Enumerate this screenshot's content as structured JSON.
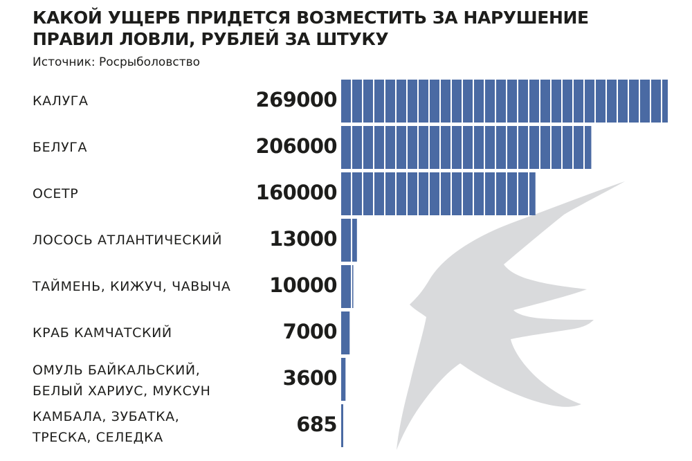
{
  "header": {
    "title": "КАКОЙ УЩЕРБ ПРИДЕТСЯ ВОЗМЕСТИТЬ ЗА НАРУШЕНИЕ ПРАВИЛ ЛОВЛИ, РУБЛЕЙ ЗА ШТУКУ",
    "source": "Источник: Росрыболовство"
  },
  "colors": {
    "bar": "#4a6aa3",
    "text": "#1d1d1b",
    "watermark": "#d9dadc"
  },
  "chart_data": {
    "type": "bar",
    "orientation": "horizontal",
    "categories": [
      "КАЛУГА",
      "БЕЛУГА",
      "ОСЕТР",
      "ЛОСОСЬ АТЛАНТИЧЕСКИЙ",
      "ТАЙМЕНЬ, КИЖУЧ, ЧАВЫЧА",
      "КРАБ КАМЧАТСКИЙ",
      "ОМУЛЬ БАЙКАЛЬСКИЙ,\nБЕЛЫЙ ХАРИУС, МУКСУН",
      "КАМБАЛА, ЗУБАТКА,\nТРЕСКА, СЕЛЕДКА"
    ],
    "values": [
      269000,
      206000,
      160000,
      13000,
      10000,
      7000,
      3600,
      685
    ],
    "value_labels": [
      "269000",
      "206000",
      "160000",
      "13000",
      "10000",
      "7000",
      "3600",
      "685"
    ],
    "title": "КАКОЙ УЩЕРБ ПРИДЕТСЯ ВОЗМЕСТИТЬ ЗА НАРУШЕНИЕ ПРАВИЛ ЛОВЛИ, РУБЛЕЙ ЗА ШТУКУ",
    "xlabel": "",
    "ylabel": "",
    "grid": false,
    "legend": "none",
    "background_icon": "fish-silhouette-icon"
  }
}
